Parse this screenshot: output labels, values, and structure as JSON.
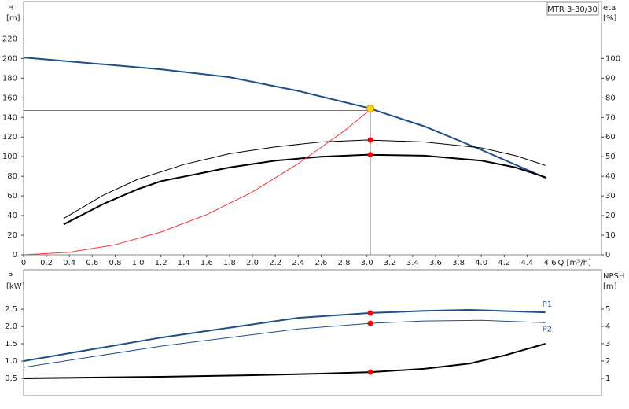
{
  "chart_data": [
    {
      "type": "line",
      "title": "MTR 3-30/30",
      "ylabel": "H",
      "yunit": "[m]",
      "y2label": "eta",
      "y2unit": "[%]",
      "xlabel": "Q [m³/h]",
      "xlim": [
        0,
        5.05
      ],
      "ylim": [
        0,
        258
      ],
      "y2lim": [
        0,
        129
      ],
      "xticks": [
        0,
        0.2,
        0.4,
        0.6,
        0.8,
        {
          "value": 1,
          "label": "1.0"
        },
        1.2,
        1.4,
        1.6,
        1.8,
        {
          "value": 2,
          "label": "2.0"
        },
        2.2,
        2.4,
        2.6,
        2.8,
        {
          "value": 3,
          "label": "3.0"
        },
        3.2,
        3.4,
        3.6,
        3.8,
        {
          "value": 4,
          "label": "4.0"
        },
        4.2,
        4.4,
        4.6
      ],
      "yticks": [
        0,
        20,
        40,
        60,
        80,
        100,
        120,
        140,
        160,
        180,
        200,
        220
      ],
      "y2ticks": [
        0,
        10,
        20,
        30,
        40,
        50,
        60,
        70,
        80,
        90,
        100
      ],
      "series": [
        {
          "color": "#1f4e8c",
          "line_width": 2,
          "x": [
            0,
            1.2,
            1.8,
            2.4,
            3.0,
            3.5,
            4.0,
            4.57
          ],
          "values": [
            201,
            189,
            181,
            167,
            150,
            131,
            107,
            78
          ]
        },
        {
          "color": "#000000",
          "line_width": 1,
          "axis": "y2",
          "x": [
            0.35,
            0.7,
            1.0,
            1.4,
            1.8,
            2.2,
            2.6,
            3.0,
            3.5,
            4.0,
            4.3,
            4.56
          ],
          "values": [
            18.5,
            30.5,
            38.5,
            46,
            51.5,
            55,
            57.5,
            58.5,
            57.5,
            54.5,
            50.5,
            45.5
          ]
        },
        {
          "color": "#000000",
          "line_width": 2,
          "axis": "y2",
          "x": [
            0.35,
            0.7,
            1.0,
            1.2,
            1.5,
            1.8,
            2.2,
            2.6,
            3.0,
            3.5,
            4.0,
            4.3,
            4.56
          ],
          "values": [
            15.5,
            26,
            33.5,
            37.5,
            41,
            44.5,
            48,
            50,
            51,
            50.5,
            48,
            44.5,
            39.5
          ]
        },
        {
          "color": "#ff3333",
          "line_width": 1,
          "x": [
            0,
            0.4,
            0.8,
            1.2,
            1.6,
            2.0,
            2.4,
            2.8,
            3.03
          ],
          "values": [
            0,
            2.6,
            10.3,
            23.2,
            41,
            64,
            93,
            126,
            148
          ]
        }
      ],
      "reference_lines": [
        {
          "x": 3.03,
          "y": 147
        }
      ],
      "points": [
        {
          "x": 3.03,
          "y": 149,
          "color": "#ffdd00"
        },
        {
          "x": 3.03,
          "y": 58.5,
          "axis": "y2",
          "color": "#ff0000"
        },
        {
          "x": 3.03,
          "y": 51,
          "axis": "y2",
          "color": "#ff0000"
        }
      ]
    },
    {
      "type": "line",
      "ylabel": "P",
      "yunit": "[kW]",
      "y2label": "NPSH",
      "y2unit": "[m]",
      "xlim": [
        0,
        5.05
      ],
      "ylim": [
        0,
        3.64
      ],
      "y2lim": [
        0,
        7.27
      ],
      "yticks": [
        0.5,
        {
          "value": 1,
          "label": "1.0"
        },
        1.5,
        {
          "value": 2,
          "label": "2.0"
        },
        2.5
      ],
      "y2ticks": [
        1,
        2,
        3,
        4,
        5
      ],
      "series": [
        {
          "name": "P1",
          "color": "#1f4e8c",
          "line_width": 2,
          "x": [
            0,
            1.2,
            2.4,
            3.03,
            3.5,
            3.9,
            4.56
          ],
          "values": [
            1.0,
            1.68,
            2.25,
            2.39,
            2.45,
            2.48,
            2.41
          ]
        },
        {
          "name": "P2",
          "color": "#1f4e8c",
          "line_width": 1,
          "x": [
            0,
            1.2,
            2.4,
            3.03,
            3.5,
            4.0,
            4.56
          ],
          "values": [
            0.82,
            1.43,
            1.93,
            2.09,
            2.16,
            2.18,
            2.11
          ]
        },
        {
          "color": "#000000",
          "line_width": 2,
          "axis": "y2",
          "x": [
            0,
            1.2,
            2.0,
            2.6,
            3.03,
            3.5,
            3.9,
            4.2,
            4.56
          ],
          "values": [
            1.0,
            1.09,
            1.18,
            1.27,
            1.36,
            1.55,
            1.86,
            2.32,
            3.0
          ]
        }
      ],
      "points": [
        {
          "x": 3.03,
          "y": 2.39,
          "color": "#ff0000"
        },
        {
          "x": 3.03,
          "y": 2.09,
          "color": "#ff0000"
        },
        {
          "x": 3.03,
          "y": 1.36,
          "axis": "y2",
          "color": "#ff0000"
        }
      ]
    }
  ]
}
